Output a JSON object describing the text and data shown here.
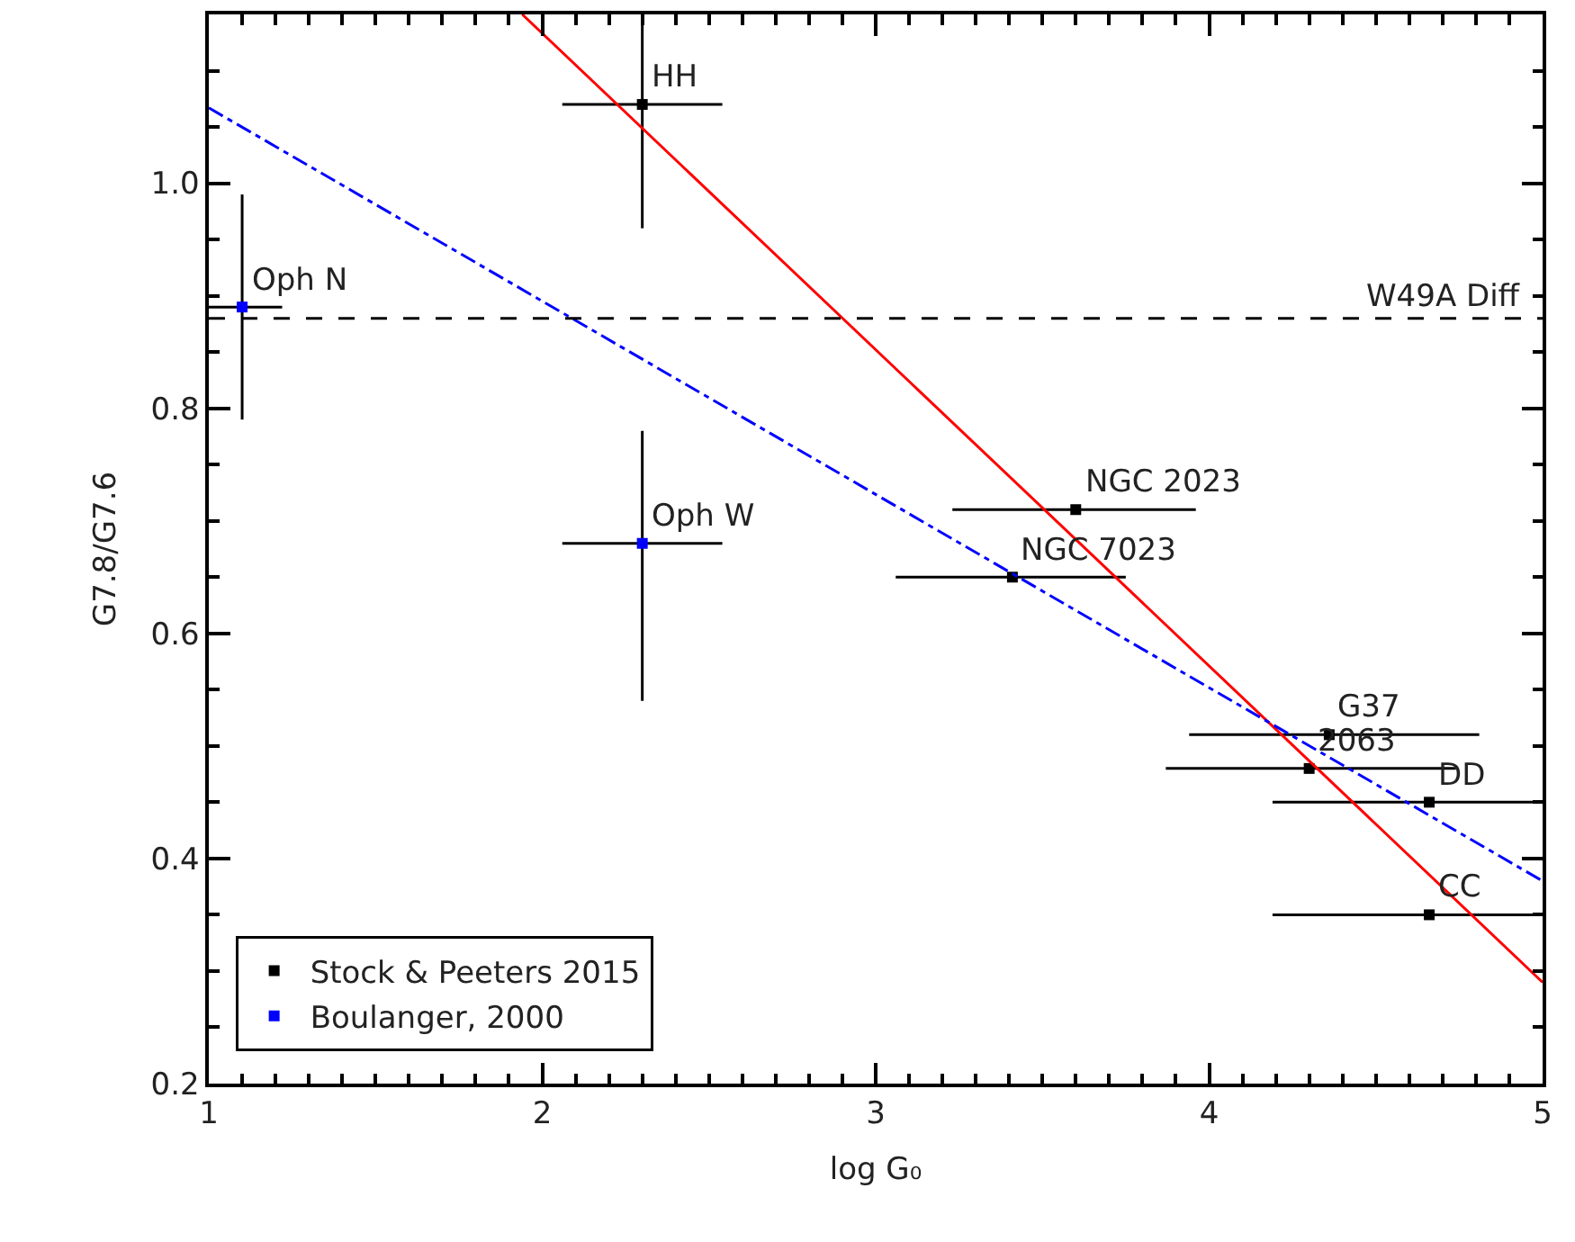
{
  "chart_data": {
    "type": "scatter",
    "xlabel": "log G₀",
    "ylabel": "G7.8/G7.6",
    "xlim": [
      1,
      5
    ],
    "ylim": [
      0.2,
      1.15
    ],
    "xticks": [
      1,
      2,
      3,
      4,
      5
    ],
    "yticks": [
      0.2,
      0.4,
      0.6,
      0.8,
      {
        "value": 1,
        "label": "1.0"
      }
    ],
    "legend": "bottom left",
    "marker": "square",
    "series": [
      {
        "name": "Stock & Peeters 2015",
        "color": "#000000",
        "x": [
          2.3,
          3.6,
          3.41,
          4.36,
          4.3,
          4.66,
          4.66
        ],
        "values": [
          1.07,
          0.71,
          0.65,
          0.51,
          0.48,
          0.45,
          0.35
        ],
        "xerrors": [
          [
            2.06,
            2.54
          ],
          [
            3.23,
            3.96
          ],
          [
            3.06,
            3.75
          ],
          [
            3.94,
            4.81
          ],
          [
            3.87,
            4.74
          ],
          [
            4.19,
            5.0
          ],
          [
            4.19,
            5.0
          ]
        ],
        "errors": [
          [
            0.96,
            1.15
          ],
          null,
          null,
          null,
          null,
          null,
          null
        ]
      },
      {
        "name": "Boulanger, 2000",
        "color": "#0000ff",
        "x": [
          1.1,
          2.3
        ],
        "values": [
          0.89,
          0.68
        ],
        "xerrors": [
          [
            1.0,
            1.22
          ],
          [
            2.06,
            2.54
          ]
        ],
        "errors": [
          [
            0.79,
            0.99
          ],
          [
            0.54,
            0.78
          ]
        ]
      },
      {
        "type": "line",
        "color": "#ff0000",
        "x": [
          1.94,
          5
        ],
        "values": [
          1.15,
          0.29
        ],
        "marker": "none",
        "line_style": "solid"
      },
      {
        "type": "line",
        "color": "#0000ff",
        "x": [
          1,
          5
        ],
        "values": [
          1.067,
          0.38
        ],
        "marker": "none",
        "line_style": "dashdot"
      }
    ],
    "ref_lines": [
      {
        "axis": "y",
        "value": 0.88,
        "label": "W49A Diff",
        "color": "#000000",
        "line_style": "dashed"
      }
    ],
    "annotations": [
      {
        "text": "HH",
        "x": 2.3,
        "y": 1.07
      },
      {
        "text": "Oph N",
        "x": 1.1,
        "y": 0.89
      },
      {
        "text": "Oph W",
        "x": 2.3,
        "y": 0.68
      },
      {
        "text": "NGC 2023",
        "x": 3.6,
        "y": 0.71
      },
      {
        "text": "NGC 7023",
        "x": 3.41,
        "y": 0.65
      },
      {
        "text": "G37",
        "x": 4.36,
        "y": 0.51
      },
      {
        "text": "2063",
        "x": 4.3,
        "y": 0.48
      },
      {
        "text": "DD",
        "x": 4.66,
        "y": 0.45
      },
      {
        "text": "CC",
        "x": 4.66,
        "y": 0.35
      }
    ]
  }
}
